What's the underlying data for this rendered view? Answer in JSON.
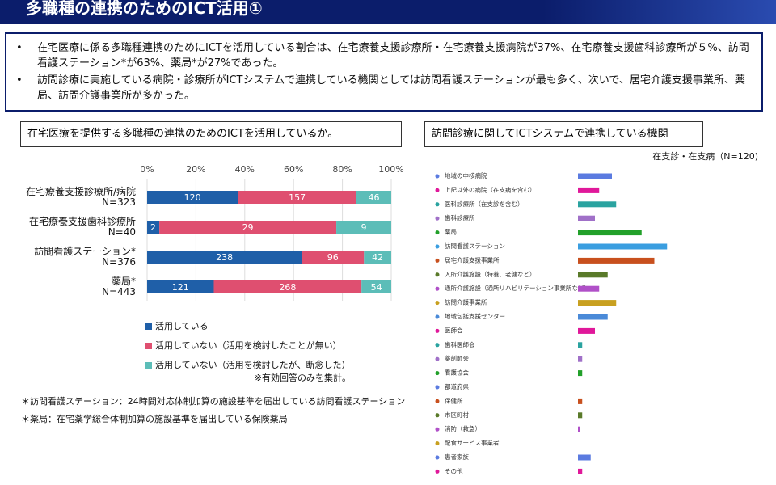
{
  "header": {
    "title": "多職種の連携のためのICT活用①"
  },
  "bullets": [
    "在宅医療に係る多職種連携のためにICTを活用している割合は、在宅療養支援診療所・在宅療養支援病院が37%、在宅療養支援歯科診療所が５%、訪問看護ステーション*が63%、薬局*が27%であった。",
    "訪問診療に実施している病院・診療所がICTシステムで連携している機関としては訪問看護ステーションが最も多く、次いで、居宅介護支援事業所、薬局、訪問介護事業所が多かった。"
  ],
  "chart_data": [
    {
      "type": "stacked-percent-bar",
      "title": "在宅医療を提供する多職種の連携のためのICTを活用しているか。",
      "categories": [
        "在宅療養支援診療所/病院\nN=323",
        "在宅療養支援歯科診療所\nN=40",
        "訪問看護ステーション*\nN=376",
        "薬局*\nN=443"
      ],
      "series": [
        {
          "name": "活用している",
          "color": "#1f5fa8",
          "values": [
            120,
            2,
            238,
            121
          ]
        },
        {
          "name": "活用していない（活用を検討したことが無い）",
          "color": "#df4f70",
          "values": [
            157,
            29,
            96,
            268
          ]
        },
        {
          "name": "活用していない（活用を検討したが、断念した）",
          "color": "#5cbdb8",
          "values": [
            46,
            9,
            42,
            54
          ]
        }
      ],
      "xlim": [
        0,
        100
      ],
      "xticks": [
        {
          "value": 0,
          "label": "0%"
        },
        {
          "value": 20,
          "label": "20%"
        },
        {
          "value": 40,
          "label": "40%"
        },
        {
          "value": 60,
          "label": "60%"
        },
        {
          "value": 80,
          "label": "80%"
        },
        {
          "value": 100,
          "label": "100%"
        }
      ],
      "grid": true,
      "note": "※有効回答のみを集計。"
    },
    {
      "type": "hbar",
      "title": "訪問診療に関してICTシステムで連携している機関",
      "subtitle": "在支診・在支病（N=120)",
      "categories": [
        "地域の中核病院",
        "上記以外の病院（在支病を含む）",
        "医科診療所（在支診を含む）",
        "歯科診療所",
        "薬局",
        "訪問看護ステーション",
        "居宅介護支援事業所",
        "入所介護施設（特養、老健など）",
        "通所介護施設（通所リハビリテーション事業所など）",
        "訪問介護事業所",
        "地域包括支援センター",
        "医師会",
        "歯科医師会",
        "薬剤師会",
        "看護協会",
        "都道府県",
        "保健所",
        "市区町村",
        "消防（救急）",
        "配食サービス事業者",
        "患者家族",
        "その他"
      ],
      "values": [
        8,
        5,
        9,
        4,
        15,
        21,
        18,
        7,
        5,
        9,
        7,
        4,
        1,
        1,
        1,
        0,
        1,
        1,
        0.5,
        0,
        3,
        1
      ],
      "colors": [
        "#5b7be0",
        "#e0189a",
        "#2aa3a0",
        "#a070c8",
        "#22a02a",
        "#3a9ee0",
        "#c8501e",
        "#5a7a2a",
        "#b050c8",
        "#c8a020",
        "#4a8ad8",
        "#e0189a",
        "#2aa3a0",
        "#a070c8",
        "#22a02a",
        "#5b7be0",
        "#c8501e",
        "#5a7a2a",
        "#b050c8",
        "#c8a020",
        "#5b7be0",
        "#e0189a"
      ],
      "xlim": [
        0,
        30
      ]
    }
  ],
  "footnotes": [
    "＊訪問看護ステーション：24時間対応体制加算の施設基準を届出している訪問看護ステーション",
    "＊薬局：在宅薬学総合体制加算の施設基準を届出している保険薬局"
  ]
}
